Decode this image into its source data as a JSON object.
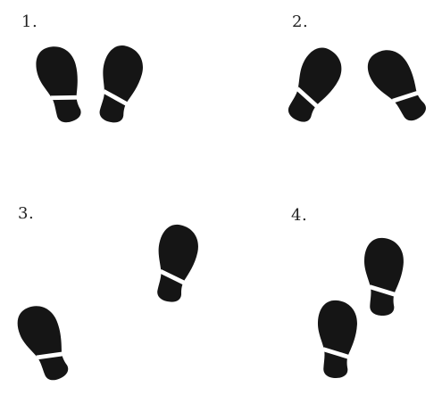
{
  "panels": [
    {
      "label": "1."
    },
    {
      "label": "2."
    },
    {
      "label": "3."
    },
    {
      "label": "4."
    }
  ],
  "colors": {
    "footprint": "#151515",
    "band": "#ffffff",
    "background": "#ffffff"
  },
  "icons": [
    "footprint-icon",
    "footprint-icon",
    "footprint-icon",
    "footprint-icon",
    "footprint-icon",
    "footprint-icon",
    "footprint-icon",
    "footprint-icon"
  ]
}
